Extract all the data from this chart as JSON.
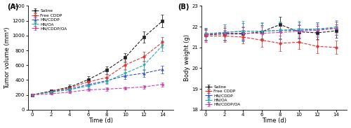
{
  "time": [
    0,
    2,
    4,
    6,
    8,
    10,
    12,
    14
  ],
  "tumor": {
    "Saline": [
      200,
      252,
      305,
      405,
      535,
      705,
      980,
      1195
    ],
    "Free CDDP": [
      200,
      248,
      295,
      375,
      435,
      605,
      715,
      910
    ],
    "HN/CDDP": [
      200,
      242,
      278,
      338,
      392,
      458,
      492,
      545
    ],
    "HN/OA": [
      200,
      238,
      268,
      322,
      382,
      492,
      600,
      865
    ],
    "HN/CDDP/OA": [
      200,
      215,
      238,
      268,
      278,
      292,
      308,
      342
    ]
  },
  "tumor_err": {
    "Saline": [
      8,
      22,
      32,
      42,
      52,
      62,
      78,
      88
    ],
    "Free CDDP": [
      8,
      20,
      28,
      38,
      42,
      58,
      62,
      72
    ],
    "HN/CDDP": [
      8,
      18,
      22,
      32,
      38,
      42,
      48,
      52
    ],
    "HN/OA": [
      8,
      18,
      22,
      28,
      38,
      48,
      58,
      70
    ],
    "HN/CDDP/OA": [
      8,
      12,
      15,
      18,
      20,
      22,
      25,
      28
    ]
  },
  "body": {
    "Saline": [
      21.6,
      21.65,
      21.65,
      21.75,
      22.1,
      21.75,
      21.7,
      21.8
    ],
    "Free CDDP": [
      21.55,
      21.55,
      21.5,
      21.35,
      21.2,
      21.25,
      21.05,
      21.0
    ],
    "HN/CDDP": [
      21.65,
      21.72,
      21.78,
      21.78,
      21.82,
      21.82,
      21.88,
      21.92
    ],
    "HN/OA": [
      21.65,
      21.72,
      21.78,
      21.78,
      21.82,
      21.88,
      21.88,
      21.98
    ],
    "HN/CDDP/OA": [
      21.62,
      21.68,
      21.68,
      21.68,
      21.72,
      21.78,
      21.82,
      21.92
    ]
  },
  "body_err": {
    "Saline": [
      0.28,
      0.28,
      0.32,
      0.32,
      0.38,
      0.32,
      0.32,
      0.32
    ],
    "Free CDDP": [
      0.28,
      0.28,
      0.32,
      0.32,
      0.38,
      0.32,
      0.32,
      0.32
    ],
    "HN/CDDP": [
      0.28,
      0.38,
      0.38,
      0.38,
      0.38,
      0.38,
      0.32,
      0.32
    ],
    "HN/OA": [
      0.28,
      0.38,
      0.48,
      0.42,
      0.42,
      0.38,
      0.32,
      0.32
    ],
    "HN/CDDP/OA": [
      0.28,
      0.32,
      0.32,
      0.32,
      0.32,
      0.32,
      0.32,
      0.32
    ]
  },
  "colors": {
    "Saline": "#222222",
    "Free CDDP": "#e03535",
    "HN/CDDP": "#3355cc",
    "HN/OA": "#22aaaa",
    "HN/CDDP/OA": "#cc44aa"
  },
  "markers": {
    "Saline": "s",
    "Free CDDP": "o",
    "HN/CDDP": "^",
    "HN/OA": "v",
    "HN/CDDP/OA": "<"
  },
  "linestyles": {
    "Saline": "--",
    "Free CDDP": "--",
    "HN/CDDP": "--",
    "HN/OA": "--",
    "HN/CDDP/OA": "--"
  }
}
